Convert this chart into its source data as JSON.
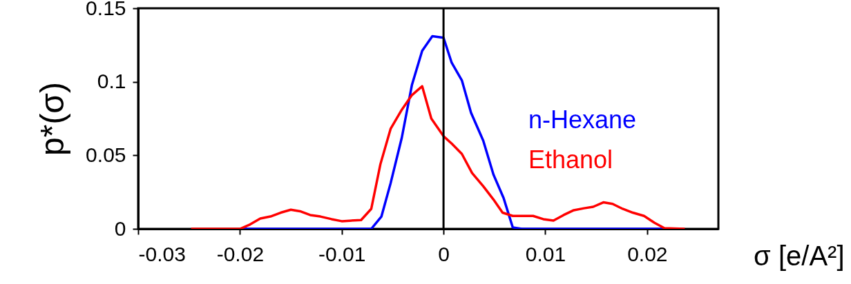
{
  "chart_data": {
    "type": "line",
    "xlabel": "σ [e/A²]",
    "ylabel": "p*(σ)",
    "xlim": [
      -0.03,
      0.027
    ],
    "xticks": [
      -0.03,
      -0.02,
      -0.01,
      0,
      0.01,
      0.02
    ],
    "ylim": [
      0,
      0.15
    ],
    "yticks": [
      0,
      0.05,
      0.1,
      0.15
    ],
    "grid": false,
    "legend": "right",
    "line_style": "solid",
    "marker": "none",
    "ref_lines": [
      {
        "axis": "x",
        "value": 0,
        "color": "#000000",
        "line_style": "solid"
      }
    ],
    "series": [
      {
        "name": "n-Hexane",
        "color": "#0000ff",
        "x": [
          -0.02,
          -0.0071,
          -0.0061,
          -0.0052,
          -0.0041,
          -0.0031,
          -0.0021,
          -0.0011,
          0,
          0.0008,
          0.0018,
          0.0027,
          0.0039,
          0.0049,
          0.0059,
          0.0068,
          0.0077,
          0.0217
        ],
        "values": [
          0,
          0,
          0.0084,
          0.031,
          0.062,
          0.098,
          0.121,
          0.131,
          0.13,
          0.113,
          0.101,
          0.079,
          0.06,
          0.037,
          0.021,
          0.001,
          0,
          0
        ]
      },
      {
        "name": "Ethanol",
        "color": "#ff0000",
        "x": [
          -0.0248,
          -0.02,
          -0.019,
          -0.018,
          -0.017,
          -0.016,
          -0.015,
          -0.0141,
          -0.0131,
          -0.0121,
          -0.011,
          -0.01,
          -0.0081,
          -0.0071,
          -0.0062,
          -0.0052,
          -0.0041,
          -0.0031,
          -0.0021,
          -0.0012,
          0,
          0.0008,
          0.0018,
          0.0028,
          0.0039,
          0.0049,
          0.0058,
          0.0068,
          0.0088,
          0.0098,
          0.0108,
          0.0118,
          0.0128,
          0.0138,
          0.0147,
          0.0157,
          0.0166,
          0.0176,
          0.0186,
          0.0197,
          0.0207,
          0.0217,
          0.0237
        ],
        "values": [
          0,
          0,
          0.003,
          0.007,
          0.0084,
          0.011,
          0.013,
          0.012,
          0.0094,
          0.0084,
          0.0066,
          0.0052,
          0.006,
          0.0136,
          0.044,
          0.068,
          0.081,
          0.091,
          0.097,
          0.075,
          0.063,
          0.058,
          0.051,
          0.038,
          0.029,
          0.02,
          0.011,
          0.0088,
          0.0088,
          0.0066,
          0.0056,
          0.0094,
          0.0127,
          0.014,
          0.015,
          0.018,
          0.017,
          0.0136,
          0.011,
          0.0088,
          0.0042,
          0.0005,
          0
        ]
      }
    ]
  }
}
